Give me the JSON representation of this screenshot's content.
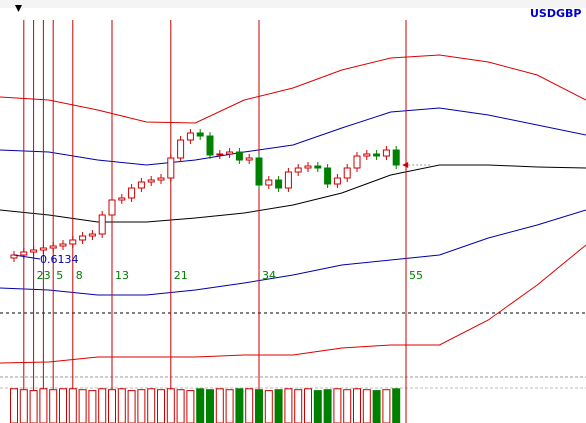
{
  "chart_data": {
    "type": "candlestick",
    "symbol": "USDGBP",
    "price_label": "0.6134",
    "ylim": [
      0.6022,
      0.6372
    ],
    "open": [
      0.6134,
      0.6137,
      0.614,
      0.6142,
      0.6144,
      0.6146,
      0.6148,
      0.6152,
      0.6156,
      0.6158,
      0.6177,
      0.6192,
      0.6194,
      0.6204,
      0.621,
      0.6212,
      0.6214,
      0.6234,
      0.6252,
      0.6259,
      0.6256,
      0.6237,
      0.6238,
      0.624,
      0.6232,
      0.6234,
      0.6207,
      0.6212,
      0.6204,
      0.622,
      0.6224,
      0.6226,
      0.6224,
      0.6208,
      0.6214,
      0.6224,
      0.6236,
      0.6238,
      0.6236,
      0.6242
    ],
    "high": [
      0.6141,
      0.6144,
      0.6146,
      0.6148,
      0.615,
      0.6152,
      0.6156,
      0.616,
      0.6162,
      0.6181,
      0.6196,
      0.6198,
      0.6208,
      0.6214,
      0.6216,
      0.6218,
      0.6238,
      0.6256,
      0.6263,
      0.6263,
      0.626,
      0.6242,
      0.6244,
      0.6244,
      0.6238,
      0.6238,
      0.6216,
      0.6216,
      0.6224,
      0.6228,
      0.623,
      0.623,
      0.6228,
      0.6218,
      0.6228,
      0.624,
      0.6242,
      0.6242,
      0.6246,
      0.6246
    ],
    "low": [
      0.613,
      0.6133,
      0.6136,
      0.6138,
      0.614,
      0.6142,
      0.6144,
      0.6148,
      0.6152,
      0.6154,
      0.6173,
      0.6188,
      0.619,
      0.62,
      0.6206,
      0.6208,
      0.621,
      0.623,
      0.6248,
      0.6252,
      0.6233,
      0.6233,
      0.6234,
      0.6228,
      0.6228,
      0.6203,
      0.6203,
      0.62,
      0.62,
      0.6216,
      0.622,
      0.622,
      0.6204,
      0.6204,
      0.621,
      0.622,
      0.6232,
      0.6232,
      0.6232,
      0.6223
    ],
    "close": [
      0.6137,
      0.614,
      0.6142,
      0.6144,
      0.6146,
      0.6148,
      0.6152,
      0.6156,
      0.6158,
      0.6177,
      0.6192,
      0.6194,
      0.6204,
      0.621,
      0.6212,
      0.6214,
      0.6234,
      0.6252,
      0.6259,
      0.6256,
      0.6237,
      0.6238,
      0.624,
      0.6232,
      0.6234,
      0.6207,
      0.6212,
      0.6204,
      0.622,
      0.6224,
      0.6226,
      0.6224,
      0.6208,
      0.6214,
      0.6224,
      0.6236,
      0.6238,
      0.6236,
      0.6242,
      0.6227
    ],
    "up_color": "#cc0000",
    "down_color": "#008000",
    "bands": [
      {
        "color": "#dd0000",
        "values": [
          0.6295,
          0.6292,
          0.6282,
          0.627,
          0.6269,
          0.6292,
          0.6304,
          0.6322,
          0.6334,
          0.6337,
          0.633,
          0.6317,
          0.6292
        ]
      },
      {
        "color": "#0000aa",
        "values": [
          0.6242,
          0.624,
          0.6232,
          0.6227,
          0.6232,
          0.624,
          0.6247,
          0.6264,
          0.628,
          0.6284,
          0.6277,
          0.6267,
          0.6257
        ]
      },
      {
        "color": "#000000",
        "values": [
          0.6182,
          0.6177,
          0.617,
          0.617,
          0.6174,
          0.6179,
          0.6187,
          0.6199,
          0.6217,
          0.6227,
          0.6227,
          0.6225,
          0.6224
        ]
      },
      {
        "color": "#0000aa",
        "values": [
          0.6104,
          0.6102,
          0.6097,
          0.6097,
          0.6102,
          0.6109,
          0.6117,
          0.6127,
          0.6132,
          0.6137,
          0.6154,
          0.6167,
          0.6182
        ]
      },
      {
        "color": "#dd0000",
        "values": [
          0.6029,
          0.603,
          0.6035,
          0.6035,
          0.6035,
          0.6037,
          0.6037,
          0.6044,
          0.6047,
          0.6047,
          0.6072,
          0.6107,
          0.6147
        ]
      }
    ],
    "level": 0.6079,
    "fib_lines": [
      {
        "index": 1
      },
      {
        "index": 2,
        "label": "23"
      },
      {
        "index": 3
      },
      {
        "index": 4,
        "label": "5"
      },
      {
        "index": 6,
        "label": "8"
      },
      {
        "index": 10,
        "label": "13"
      },
      {
        "index": 16,
        "label": "21"
      },
      {
        "index": 25,
        "label": "34"
      },
      {
        "index": 40,
        "label": "55"
      }
    ],
    "fib_color": "#cc0000",
    "volume_ylim": [
      0,
      50
    ],
    "volume": [
      38,
      37,
      36,
      38,
      37,
      38,
      38,
      37,
      36,
      38,
      37,
      38,
      36,
      37,
      38,
      37,
      38,
      37,
      36,
      38,
      37,
      38,
      37,
      38,
      38,
      37,
      36,
      37,
      38,
      37,
      38,
      36,
      37,
      38,
      37,
      38,
      37,
      36,
      37,
      38
    ]
  }
}
